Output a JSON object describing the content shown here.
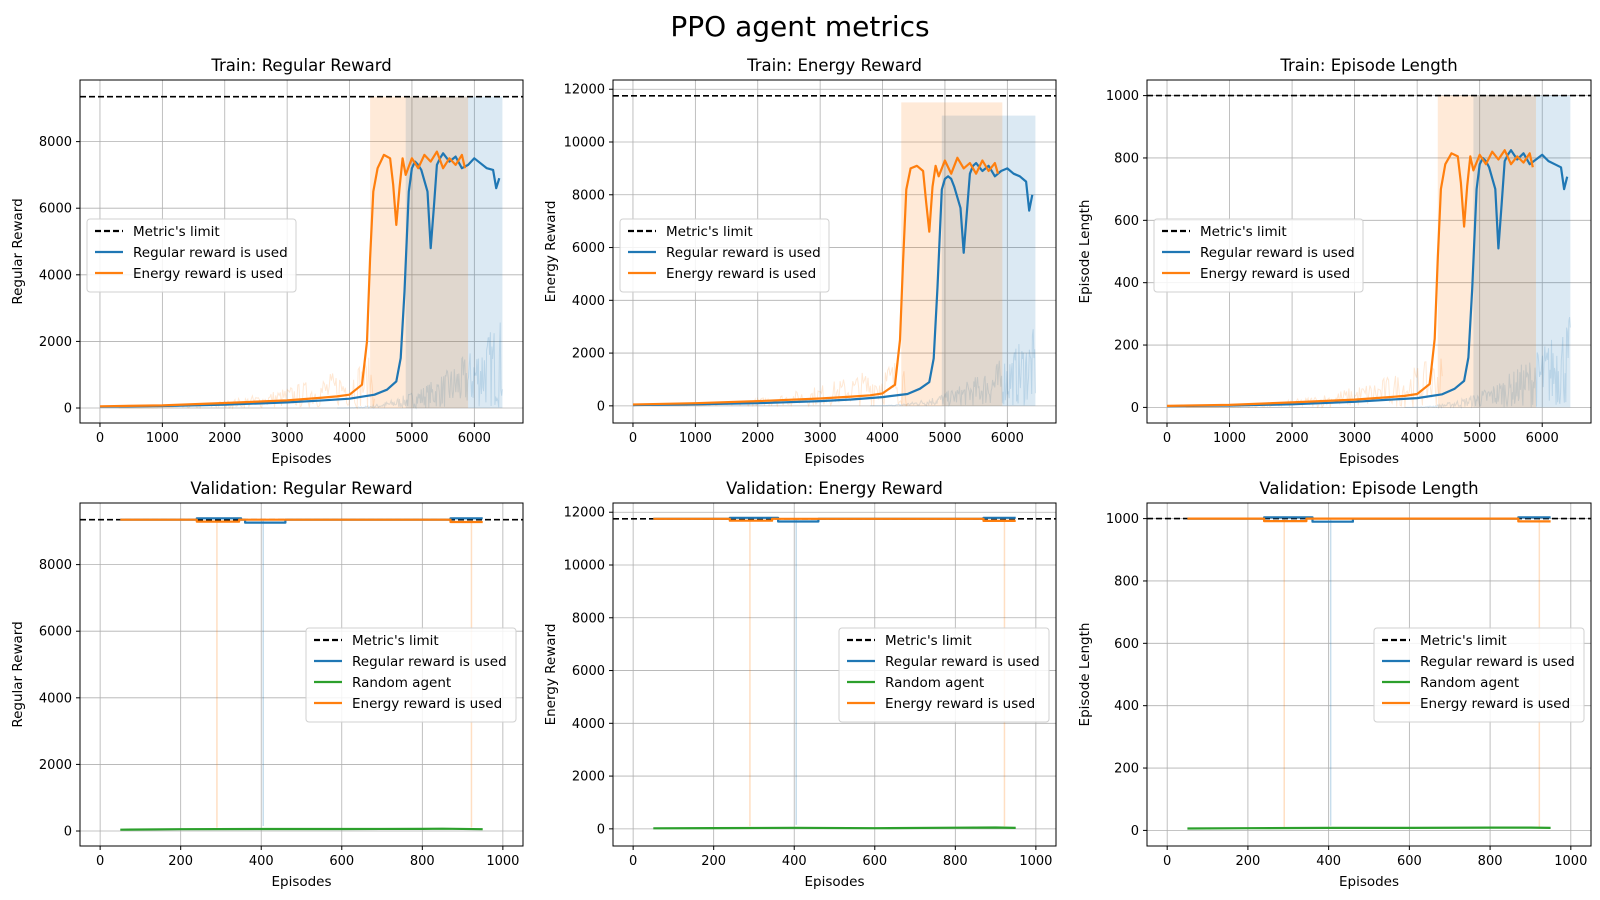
{
  "suptitle": "PPO agent metrics",
  "colors": {
    "regular": "#1f77b4",
    "energy": "#ff7f0e",
    "random": "#2ca02c",
    "limit": "#000000",
    "grid": "#b0b0b0"
  },
  "chart_data": [
    {
      "type": "line",
      "title": "Train: Regular Reward",
      "xlabel": "Episodes",
      "ylabel": "Regular Reward",
      "xlim": [
        -320,
        6780
      ],
      "ylim": [
        -450,
        9850
      ],
      "xticks": [
        0,
        1000,
        2000,
        3000,
        4000,
        5000,
        6000
      ],
      "yticks": [
        0,
        2000,
        4000,
        6000,
        8000
      ],
      "limit": 9350,
      "legend": {
        "position": "center-left",
        "entries": [
          "Metric's limit",
          "Regular reward is used",
          "Energy reward is used"
        ]
      },
      "grid": true,
      "series": [
        {
          "name": "Regular reward is used",
          "color": "regular",
          "x": [
            0,
            1000,
            2000,
            3000,
            3500,
            4000,
            4400,
            4600,
            4750,
            4820,
            4880,
            4950,
            5000,
            5050,
            5100,
            5150,
            5250,
            5300,
            5350,
            5400,
            5450,
            5500,
            5600,
            5700,
            5800,
            5900,
            6000,
            6100,
            6200,
            6300,
            6350,
            6400
          ],
          "y": [
            40,
            60,
            100,
            170,
            220,
            280,
            400,
            550,
            800,
            1500,
            3500,
            6500,
            7200,
            7400,
            7300,
            7150,
            6500,
            4800,
            6000,
            7300,
            7500,
            7650,
            7400,
            7550,
            7200,
            7300,
            7500,
            7350,
            7200,
            7150,
            6600,
            6900
          ],
          "band_x": [
            4900,
            6450
          ],
          "band": [
            0,
            9350
          ],
          "noise_x": [
            3800,
            6450
          ],
          "noise_y": [
            0,
            2800
          ]
        },
        {
          "name": "Energy reward is used",
          "color": "energy",
          "x": [
            0,
            1000,
            2000,
            3000,
            3500,
            3800,
            4000,
            4200,
            4280,
            4330,
            4380,
            4450,
            4550,
            4650,
            4700,
            4750,
            4800,
            4850,
            4900,
            5000,
            5100,
            5200,
            5300,
            5400,
            5500,
            5600,
            5700,
            5800,
            5850
          ],
          "y": [
            50,
            80,
            150,
            230,
            300,
            350,
            400,
            700,
            2000,
            4500,
            6500,
            7200,
            7600,
            7500,
            6700,
            5500,
            6600,
            7500,
            7000,
            7500,
            7200,
            7600,
            7400,
            7700,
            7200,
            7500,
            7300,
            7600,
            7200
          ],
          "band_x": [
            4330,
            5900
          ],
          "band": [
            0,
            9350
          ],
          "noise_x": [
            300,
            4400
          ],
          "noise_y": [
            0,
            1600
          ]
        }
      ]
    },
    {
      "type": "line",
      "title": "Train: Energy Reward",
      "xlabel": "Episodes",
      "ylabel": "Energy Reward",
      "xlim": [
        -320,
        6780
      ],
      "ylim": [
        -650,
        12350
      ],
      "xticks": [
        0,
        1000,
        2000,
        3000,
        4000,
        5000,
        6000
      ],
      "yticks": [
        0,
        2000,
        4000,
        6000,
        8000,
        10000,
        12000
      ],
      "limit": 11750,
      "legend": {
        "position": "center-left",
        "entries": [
          "Metric's limit",
          "Regular reward is used",
          "Energy reward is used"
        ]
      },
      "grid": true,
      "series": [
        {
          "name": "Regular reward is used",
          "color": "regular",
          "x": [
            0,
            1000,
            2000,
            3000,
            3500,
            4000,
            4400,
            4600,
            4750,
            4820,
            4880,
            4950,
            5000,
            5050,
            5100,
            5150,
            5250,
            5300,
            5350,
            5400,
            5450,
            5500,
            5600,
            5700,
            5800,
            5900,
            6000,
            6100,
            6200,
            6300,
            6350,
            6400
          ],
          "y": [
            30,
            60,
            100,
            180,
            240,
            330,
            450,
            650,
            900,
            1800,
            4500,
            8200,
            8600,
            8700,
            8600,
            8300,
            7500,
            5800,
            7300,
            8800,
            9100,
            9200,
            8900,
            9100,
            8700,
            8900,
            9000,
            8800,
            8700,
            8500,
            7400,
            8000
          ],
          "band_x": [
            4950,
            6450
          ],
          "band": [
            0,
            11000
          ],
          "noise_x": [
            3800,
            6450
          ],
          "noise_y": [
            0,
            3000
          ]
        },
        {
          "name": "Energy reward is used",
          "color": "energy",
          "x": [
            0,
            1000,
            2000,
            3000,
            3500,
            3800,
            4000,
            4200,
            4280,
            4330,
            4380,
            4450,
            4550,
            4650,
            4700,
            4750,
            4800,
            4850,
            4900,
            5000,
            5100,
            5200,
            5300,
            5400,
            5500,
            5600,
            5700,
            5800,
            5850
          ],
          "y": [
            50,
            100,
            180,
            280,
            350,
            400,
            470,
            800,
            2500,
            5500,
            8200,
            9000,
            9100,
            8900,
            7700,
            6600,
            8300,
            9100,
            8700,
            9300,
            8800,
            9400,
            9000,
            9200,
            8800,
            9300,
            8900,
            9200,
            8800
          ],
          "band_x": [
            4300,
            5920
          ],
          "band": [
            0,
            11500
          ],
          "noise_x": [
            300,
            4400
          ],
          "noise_y": [
            0,
            2000
          ]
        }
      ]
    },
    {
      "type": "line",
      "title": "Train: Episode Length",
      "xlabel": "Episodes",
      "ylabel": "Episode Length",
      "xlim": [
        -320,
        6780
      ],
      "ylim": [
        -50,
        1050
      ],
      "xticks": [
        0,
        1000,
        2000,
        3000,
        4000,
        5000,
        6000
      ],
      "yticks": [
        0,
        200,
        400,
        600,
        800,
        1000
      ],
      "limit": 1000,
      "legend": {
        "position": "center-left",
        "entries": [
          "Metric's limit",
          "Regular reward is used",
          "Energy reward is used"
        ]
      },
      "grid": true,
      "series": [
        {
          "name": "Regular reward is used",
          "color": "regular",
          "x": [
            0,
            1000,
            2000,
            3000,
            3500,
            4000,
            4400,
            4600,
            4750,
            4820,
            4880,
            4950,
            5000,
            5050,
            5100,
            5150,
            5250,
            5300,
            5350,
            5400,
            5450,
            5500,
            5600,
            5700,
            5800,
            5900,
            6000,
            6100,
            6200,
            6300,
            6350,
            6400
          ],
          "y": [
            4,
            6,
            10,
            18,
            24,
            30,
            42,
            60,
            85,
            160,
            380,
            700,
            780,
            800,
            790,
            770,
            700,
            510,
            650,
            790,
            810,
            825,
            795,
            815,
            780,
            795,
            810,
            790,
            780,
            770,
            700,
            740
          ],
          "band_x": [
            4900,
            6450
          ],
          "band": [
            0,
            1000
          ],
          "noise_x": [
            3800,
            6450
          ],
          "noise_y": [
            0,
            300
          ]
        },
        {
          "name": "Energy reward is used",
          "color": "energy",
          "x": [
            0,
            1000,
            2000,
            3000,
            3500,
            3800,
            4000,
            4200,
            4280,
            4330,
            4380,
            4450,
            4550,
            4650,
            4700,
            4750,
            4800,
            4850,
            4900,
            5000,
            5100,
            5200,
            5300,
            5400,
            5500,
            5600,
            5700,
            5800,
            5850
          ],
          "y": [
            5,
            8,
            16,
            25,
            32,
            37,
            43,
            75,
            220,
            480,
            700,
            780,
            815,
            805,
            720,
            580,
            710,
            805,
            760,
            810,
            780,
            820,
            795,
            825,
            780,
            805,
            785,
            815,
            770
          ],
          "band_x": [
            4330,
            5900
          ],
          "band": [
            0,
            1000
          ],
          "noise_x": [
            300,
            4400
          ],
          "noise_y": [
            0,
            170
          ]
        }
      ]
    },
    {
      "type": "line",
      "title": "Validation: Regular Reward",
      "xlabel": "Episodes",
      "ylabel": "Regular Reward",
      "xlim": [
        -50,
        1050
      ],
      "ylim": [
        -450,
        9850
      ],
      "xticks": [
        0,
        200,
        400,
        600,
        800,
        1000
      ],
      "yticks": [
        0,
        2000,
        4000,
        6000,
        8000
      ],
      "limit": 9350,
      "legend": {
        "position": "center-right",
        "entries": [
          "Metric's limit",
          "Regular reward is used",
          "Random agent",
          "Energy reward is used"
        ]
      },
      "grid": true,
      "series": [
        {
          "name": "Regular reward is used",
          "color": "regular",
          "x": [
            50,
            240,
            240,
            350,
            350,
            360,
            360,
            460,
            460,
            870,
            870,
            950
          ],
          "y": [
            9350,
            9350,
            9390,
            9390,
            9350,
            9350,
            9260,
            9260,
            9350,
            9350,
            9390,
            9390
          ],
          "spikes": [
            [
              405,
              150
            ]
          ]
        },
        {
          "name": "Random agent",
          "color": "random",
          "x": [
            50,
            200,
            400,
            600,
            800,
            850,
            950
          ],
          "y": [
            40,
            55,
            60,
            60,
            65,
            70,
            55
          ]
        },
        {
          "name": "Energy reward is used",
          "color": "energy",
          "x": [
            50,
            240,
            240,
            345,
            345,
            870,
            870,
            950
          ],
          "y": [
            9350,
            9350,
            9290,
            9290,
            9350,
            9350,
            9280,
            9280
          ],
          "spikes": [
            [
              290,
              100
            ],
            [
              922,
              100
            ]
          ]
        }
      ]
    },
    {
      "type": "line",
      "title": "Validation: Energy Reward",
      "xlabel": "Episodes",
      "ylabel": "Energy Reward",
      "xlim": [
        -50,
        1050
      ],
      "ylim": [
        -650,
        12350
      ],
      "xticks": [
        0,
        200,
        400,
        600,
        800,
        1000
      ],
      "yticks": [
        0,
        2000,
        4000,
        6000,
        8000,
        10000,
        12000
      ],
      "limit": 11750,
      "legend": {
        "position": "center-right",
        "entries": [
          "Metric's limit",
          "Regular reward is used",
          "Random agent",
          "Energy reward is used"
        ]
      },
      "grid": true,
      "series": [
        {
          "name": "Regular reward is used",
          "color": "regular",
          "x": [
            50,
            240,
            240,
            360,
            360,
            460,
            460,
            870,
            870,
            950
          ],
          "y": [
            11750,
            11750,
            11790,
            11790,
            11650,
            11650,
            11750,
            11750,
            11790,
            11790
          ],
          "spikes": [
            [
              405,
              150
            ]
          ]
        },
        {
          "name": "Random agent",
          "color": "random",
          "x": [
            50,
            200,
            400,
            600,
            800,
            900,
            950
          ],
          "y": [
            20,
            30,
            40,
            25,
            45,
            50,
            35
          ]
        },
        {
          "name": "Energy reward is used",
          "color": "energy",
          "x": [
            50,
            240,
            240,
            345,
            345,
            870,
            870,
            950
          ],
          "y": [
            11750,
            11750,
            11680,
            11680,
            11750,
            11750,
            11670,
            11670
          ],
          "spikes": [
            [
              290,
              100
            ],
            [
              922,
              100
            ]
          ]
        }
      ]
    },
    {
      "type": "line",
      "title": "Validation: Episode Length",
      "xlabel": "Episodes",
      "ylabel": "Episode Length",
      "xlim": [
        -50,
        1050
      ],
      "ylim": [
        -50,
        1050
      ],
      "xticks": [
        0,
        200,
        400,
        600,
        800,
        1000
      ],
      "yticks": [
        0,
        200,
        400,
        600,
        800,
        1000
      ],
      "limit": 1000,
      "legend": {
        "position": "center-right",
        "entries": [
          "Metric's limit",
          "Regular reward is used",
          "Random agent",
          "Energy reward is used"
        ]
      },
      "grid": true,
      "series": [
        {
          "name": "Regular reward is used",
          "color": "regular",
          "x": [
            50,
            240,
            240,
            360,
            360,
            460,
            460,
            870,
            870,
            950
          ],
          "y": [
            1000,
            1000,
            1004,
            1004,
            990,
            990,
            1000,
            1000,
            1004,
            1004
          ],
          "spikes": [
            [
              405,
              15
            ]
          ]
        },
        {
          "name": "Random agent",
          "color": "random",
          "x": [
            50,
            200,
            400,
            600,
            800,
            900,
            950
          ],
          "y": [
            6,
            7,
            8,
            8,
            9,
            9,
            8
          ]
        },
        {
          "name": "Energy reward is used",
          "color": "energy",
          "x": [
            50,
            240,
            240,
            345,
            345,
            870,
            870,
            950
          ],
          "y": [
            1000,
            1000,
            992,
            992,
            1000,
            1000,
            991,
            991
          ],
          "spikes": [
            [
              290,
              10
            ],
            [
              922,
              10
            ]
          ]
        }
      ]
    }
  ]
}
